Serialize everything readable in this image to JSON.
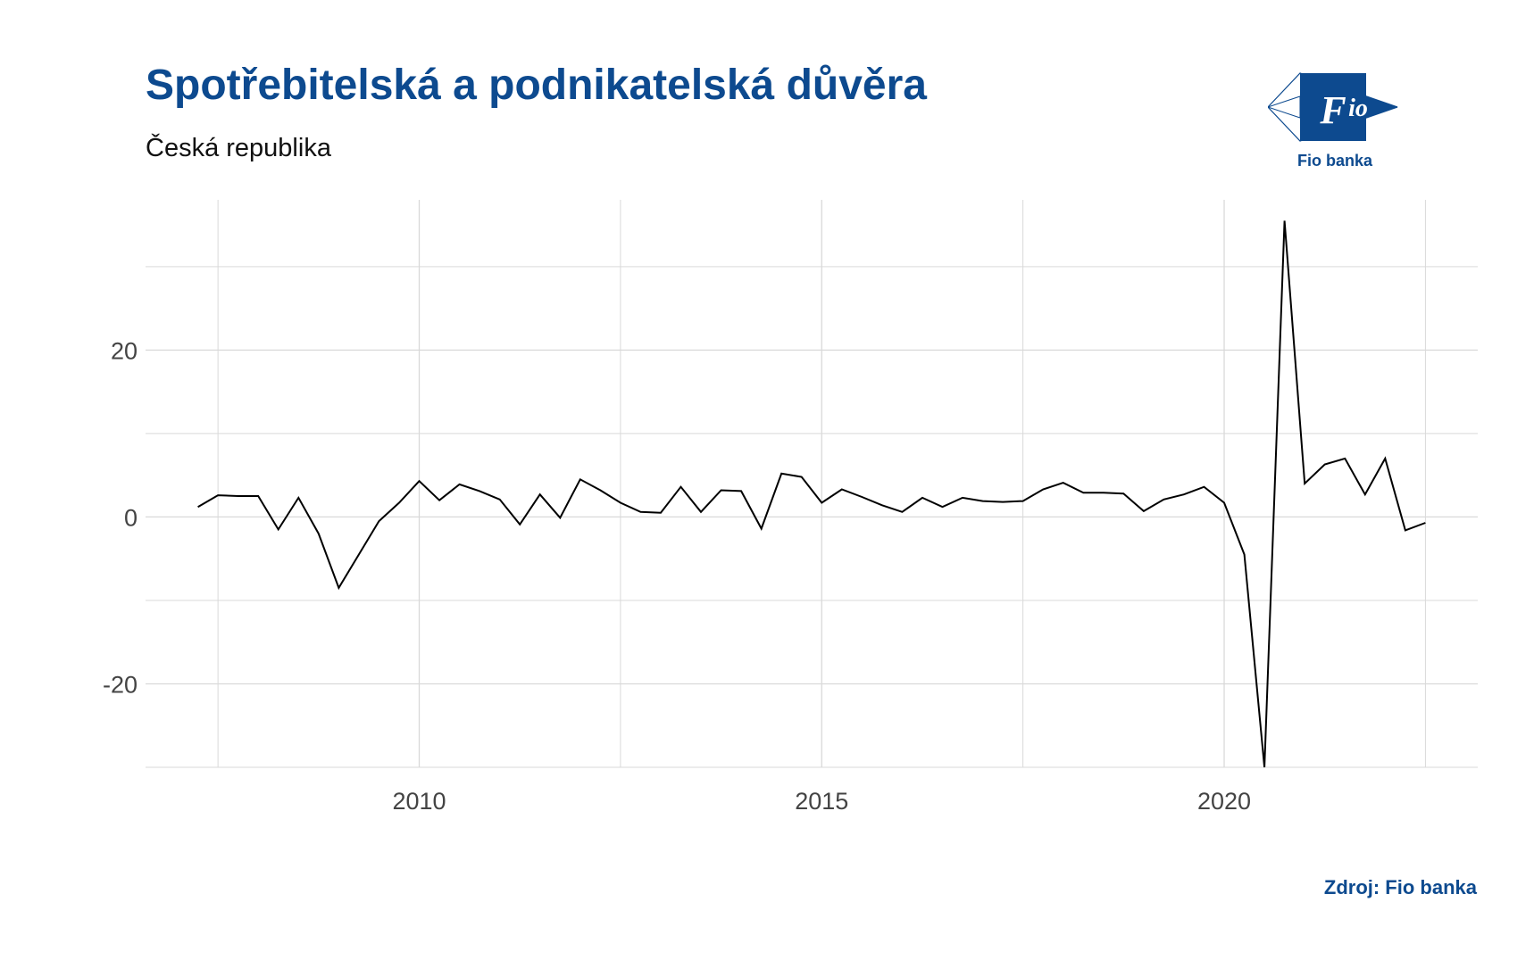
{
  "header": {
    "title": "Spotřebitelská a podnikatelská důvěra",
    "subtitle": "Česká republika"
  },
  "logo": {
    "mark_text": "Fio",
    "caption": "Fio banka",
    "color": "#0d4a8f"
  },
  "footer": {
    "source": "Zdroj: Fio banka"
  },
  "chart_data": {
    "type": "line",
    "title": "Spotřebitelská a podnikatelská důvěra",
    "subtitle": "Česká republika",
    "xlabel": "",
    "ylabel": "",
    "xlim": [
      2006.6,
      2023.15
    ],
    "ylim": [
      -30,
      38
    ],
    "x_ticks": [
      2010,
      2015,
      2020
    ],
    "y_ticks": [
      -20,
      0,
      20
    ],
    "grid": true,
    "line_color": "#000000",
    "grid_color": "#d9d9d9",
    "series": [
      {
        "x": [
          2007.25,
          2007.5,
          2007.75,
          2008.0,
          2008.25,
          2008.5,
          2008.75,
          2009.0,
          2009.25,
          2009.5,
          2009.75,
          2010.0,
          2010.25,
          2010.5,
          2010.75,
          2011.0,
          2011.25,
          2011.5,
          2011.75,
          2012.0,
          2012.25,
          2012.5,
          2012.75,
          2013.0,
          2013.25,
          2013.5,
          2013.75,
          2014.0,
          2014.25,
          2014.5,
          2014.75,
          2015.0,
          2015.25,
          2015.5,
          2015.75,
          2016.0,
          2016.25,
          2016.5,
          2016.75,
          2017.0,
          2017.25,
          2017.5,
          2017.75,
          2018.0,
          2018.25,
          2018.5,
          2018.75,
          2019.0,
          2019.25,
          2019.5,
          2019.75,
          2020.0,
          2020.25,
          2020.5,
          2020.75,
          2021.0,
          2021.25,
          2021.5,
          2021.75,
          2022.0,
          2022.25,
          2022.5
        ],
        "values": [
          1.2,
          2.6,
          2.5,
          2.5,
          -1.5,
          2.3,
          -2.0,
          -8.5,
          -4.5,
          -0.5,
          1.7,
          4.3,
          2.0,
          3.9,
          3.1,
          2.1,
          -0.9,
          2.7,
          -0.1,
          4.5,
          3.2,
          1.7,
          0.6,
          0.5,
          3.6,
          0.6,
          3.2,
          3.1,
          -1.4,
          5.2,
          4.8,
          1.7,
          3.3,
          2.4,
          1.4,
          0.6,
          2.3,
          1.2,
          2.3,
          1.9,
          1.8,
          1.9,
          3.3,
          4.1,
          2.9,
          2.9,
          2.8,
          0.7,
          2.1,
          2.7,
          3.6,
          1.7,
          -4.5,
          -30.0,
          35.5,
          4.0,
          6.3,
          7.0,
          2.7,
          7.0,
          -1.6,
          -0.7
        ]
      }
    ]
  }
}
